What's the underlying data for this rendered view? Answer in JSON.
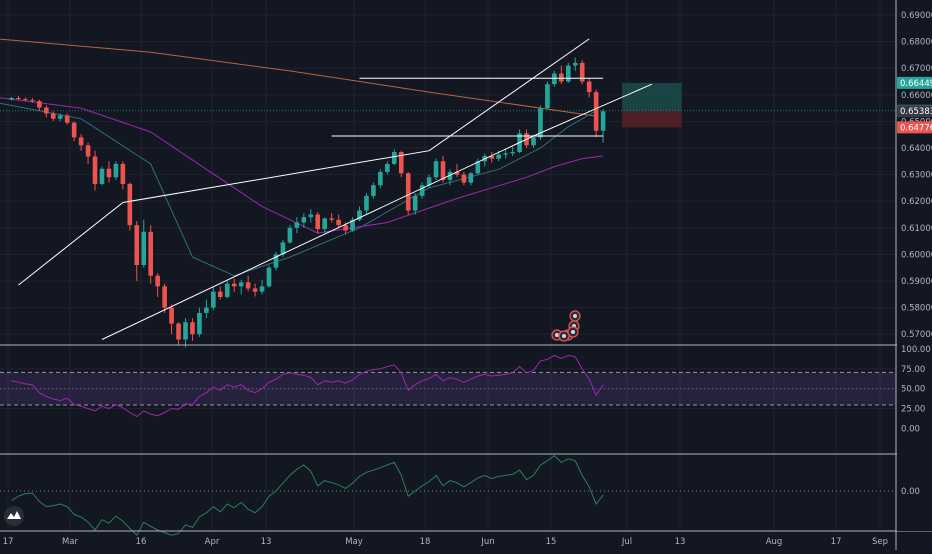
{
  "colors": {
    "background": "#131722",
    "grid": "#1f2330",
    "up": "#26a69a",
    "down": "#ef5350",
    "text": "#b2b5be",
    "channel": "#ffffff",
    "ma_orange": "#b5653f",
    "ma_purple": "#9c27b0",
    "ma_teal": "#26a69a",
    "rsi": "#9c27b0",
    "rsi_band": "#7e57c2",
    "osc": "#26a69a"
  },
  "price_axis": {
    "ticks": [
      "0.69000",
      "0.68000",
      "0.67000",
      "0.66000",
      "0.65000",
      "0.64000",
      "0.63000",
      "0.62000",
      "0.61000",
      "0.60000",
      "0.59000",
      "0.58000",
      "0.57000"
    ],
    "labels": [
      {
        "text": "0.66449",
        "value": 0.66449,
        "color": "#26a69a"
      },
      {
        "text": "0.65400",
        "value": 0.654,
        "color": "#26a69a"
      },
      {
        "text": "0.65383",
        "value": 0.65383,
        "color": "#363a45"
      },
      {
        "text": "0.64776",
        "value": 0.64776,
        "color": "#ef5350"
      }
    ]
  },
  "rsi_axis": {
    "ticks": [
      "100.00",
      "75.00",
      "50.00",
      "25.00",
      "0.00"
    ]
  },
  "osc_axis": {
    "ticks": [
      "0.00"
    ]
  },
  "time_axis": {
    "labels": [
      "17",
      "Mar",
      "16",
      "Apr",
      "13",
      "May",
      "18",
      "Jun",
      "15",
      "Jul",
      "13",
      "Aug",
      "17",
      "Sep"
    ]
  },
  "chart_data": {
    "type": "candlestick",
    "candles": [
      [
        0.6582,
        0.6592,
        0.6578,
        0.6588
      ],
      [
        0.6588,
        0.6596,
        0.658,
        0.6584
      ],
      [
        0.6584,
        0.659,
        0.6575,
        0.658
      ],
      [
        0.658,
        0.6588,
        0.657,
        0.6576
      ],
      [
        0.6576,
        0.6582,
        0.654,
        0.6552
      ],
      [
        0.6552,
        0.656,
        0.6515,
        0.653
      ],
      [
        0.653,
        0.6538,
        0.6502,
        0.651
      ],
      [
        0.651,
        0.653,
        0.65,
        0.6522
      ],
      [
        0.6522,
        0.653,
        0.6488,
        0.6495
      ],
      [
        0.6495,
        0.65,
        0.6425,
        0.644
      ],
      [
        0.644,
        0.6452,
        0.639,
        0.641
      ],
      [
        0.641,
        0.642,
        0.634,
        0.6368
      ],
      [
        0.6368,
        0.639,
        0.624,
        0.6265
      ],
      [
        0.6265,
        0.633,
        0.626,
        0.6322
      ],
      [
        0.6322,
        0.635,
        0.627,
        0.629
      ],
      [
        0.629,
        0.635,
        0.628,
        0.634
      ],
      [
        0.634,
        0.635,
        0.6245,
        0.6265
      ],
      [
        0.6265,
        0.627,
        0.609,
        0.611
      ],
      [
        0.611,
        0.6125,
        0.59,
        0.596
      ],
      [
        0.596,
        0.613,
        0.595,
        0.6085
      ],
      [
        0.6085,
        0.611,
        0.589,
        0.592
      ],
      [
        0.592,
        0.593,
        0.584,
        0.588
      ],
      [
        0.588,
        0.589,
        0.578,
        0.58
      ],
      [
        0.58,
        0.5812,
        0.57,
        0.574
      ],
      [
        0.574,
        0.5745,
        0.566,
        0.568
      ],
      [
        0.568,
        0.576,
        0.565,
        0.5745
      ],
      [
        0.5745,
        0.576,
        0.5675,
        0.57
      ],
      [
        0.57,
        0.58,
        0.569,
        0.578
      ],
      [
        0.578,
        0.583,
        0.576,
        0.58
      ],
      [
        0.58,
        0.588,
        0.579,
        0.586
      ],
      [
        0.586,
        0.588,
        0.583,
        0.584
      ],
      [
        0.584,
        0.59,
        0.5835,
        0.589
      ],
      [
        0.589,
        0.5908,
        0.586,
        0.588
      ],
      [
        0.588,
        0.5905,
        0.585,
        0.5895
      ],
      [
        0.5895,
        0.592,
        0.586,
        0.5872
      ],
      [
        0.5872,
        0.589,
        0.5842,
        0.586
      ],
      [
        0.586,
        0.5905,
        0.585,
        0.588
      ],
      [
        0.588,
        0.5958,
        0.5875,
        0.595
      ],
      [
        0.595,
        0.601,
        0.594,
        0.6
      ],
      [
        0.6,
        0.6055,
        0.599,
        0.6045
      ],
      [
        0.6045,
        0.611,
        0.604,
        0.61
      ],
      [
        0.61,
        0.614,
        0.608,
        0.612
      ],
      [
        0.612,
        0.6155,
        0.61,
        0.614
      ],
      [
        0.614,
        0.617,
        0.612,
        0.615
      ],
      [
        0.615,
        0.616,
        0.608,
        0.6095
      ],
      [
        0.6095,
        0.614,
        0.608,
        0.6135
      ],
      [
        0.6135,
        0.6155,
        0.612,
        0.613
      ],
      [
        0.613,
        0.615,
        0.61,
        0.611
      ],
      [
        0.611,
        0.612,
        0.6075,
        0.609
      ],
      [
        0.609,
        0.614,
        0.6085,
        0.613
      ],
      [
        0.613,
        0.618,
        0.6125,
        0.6165
      ],
      [
        0.6165,
        0.623,
        0.615,
        0.622
      ],
      [
        0.622,
        0.627,
        0.621,
        0.626
      ],
      [
        0.626,
        0.632,
        0.625,
        0.631
      ],
      [
        0.631,
        0.635,
        0.63,
        0.634
      ],
      [
        0.634,
        0.6395,
        0.6335,
        0.6385
      ],
      [
        0.6385,
        0.639,
        0.629,
        0.6305
      ],
      [
        0.6305,
        0.631,
        0.615,
        0.6165
      ],
      [
        0.6165,
        0.623,
        0.615,
        0.622
      ],
      [
        0.622,
        0.627,
        0.621,
        0.626
      ],
      [
        0.626,
        0.63,
        0.625,
        0.629
      ],
      [
        0.629,
        0.636,
        0.628,
        0.635
      ],
      [
        0.635,
        0.637,
        0.627,
        0.628
      ],
      [
        0.628,
        0.632,
        0.626,
        0.631
      ],
      [
        0.631,
        0.634,
        0.629,
        0.63
      ],
      [
        0.63,
        0.631,
        0.626,
        0.627
      ],
      [
        0.627,
        0.631,
        0.626,
        0.6305
      ],
      [
        0.6305,
        0.636,
        0.63,
        0.635
      ],
      [
        0.635,
        0.638,
        0.633,
        0.637
      ],
      [
        0.637,
        0.6385,
        0.6345,
        0.636
      ],
      [
        0.636,
        0.639,
        0.635,
        0.6375
      ],
      [
        0.6375,
        0.6395,
        0.636,
        0.638
      ],
      [
        0.638,
        0.6405,
        0.637,
        0.6385
      ],
      [
        0.6385,
        0.647,
        0.638,
        0.6455
      ],
      [
        0.6455,
        0.647,
        0.64,
        0.641
      ],
      [
        0.641,
        0.645,
        0.64,
        0.644
      ],
      [
        0.644,
        0.656,
        0.643,
        0.655
      ],
      [
        0.655,
        0.665,
        0.6545,
        0.664
      ],
      [
        0.664,
        0.669,
        0.663,
        0.668
      ],
      [
        0.668,
        0.671,
        0.664,
        0.665
      ],
      [
        0.665,
        0.672,
        0.6645,
        0.671
      ],
      [
        0.671,
        0.674,
        0.669,
        0.672
      ],
      [
        0.672,
        0.673,
        0.664,
        0.665
      ],
      [
        0.665,
        0.6665,
        0.659,
        0.661
      ],
      [
        0.661,
        0.662,
        0.644,
        0.6465
      ],
      [
        0.6465,
        0.6545,
        0.642,
        0.6538
      ]
    ],
    "channel": {
      "upper": [
        [
          1,
          0.5885
        ],
        [
          16,
          0.6195
        ],
        [
          60,
          0.639
        ],
        [
          83,
          0.681
        ]
      ],
      "lower": [
        [
          13,
          0.568
        ],
        [
          40,
          0.6015
        ],
        [
          75,
          0.6445
        ],
        [
          92,
          0.664
        ]
      ]
    },
    "horizontal_levels": [
      {
        "value": 0.6662,
        "from": 50,
        "to": 85
      },
      {
        "value": 0.6445,
        "from": 46,
        "to": 85
      }
    ],
    "position": {
      "from": 85,
      "to": 94,
      "entry": 0.654,
      "target": 0.66449,
      "stop": 0.64776
    },
    "ma_orange": [
      [
        -2,
        0.681
      ],
      [
        20,
        0.676
      ],
      [
        40,
        0.669
      ],
      [
        60,
        0.661
      ],
      [
        80,
        0.6535
      ],
      [
        84,
        0.652
      ]
    ],
    "ma_teal": [
      [
        -2,
        0.657
      ],
      [
        10,
        0.651
      ],
      [
        20,
        0.634
      ],
      [
        26,
        0.599
      ],
      [
        32,
        0.592
      ],
      [
        40,
        0.599
      ],
      [
        50,
        0.61
      ],
      [
        60,
        0.625
      ],
      [
        70,
        0.632
      ],
      [
        76,
        0.64
      ],
      [
        80,
        0.648
      ],
      [
        84,
        0.654
      ]
    ],
    "ma_purple": [
      [
        -2,
        0.659
      ],
      [
        10,
        0.655
      ],
      [
        20,
        0.646
      ],
      [
        28,
        0.632
      ],
      [
        36,
        0.618
      ],
      [
        44,
        0.608
      ],
      [
        54,
        0.612
      ],
      [
        64,
        0.621
      ],
      [
        74,
        0.629
      ],
      [
        78,
        0.633
      ],
      [
        82,
        0.636
      ],
      [
        85,
        0.637
      ]
    ],
    "rsi": [
      60,
      58,
      56,
      55,
      45,
      40,
      37,
      35,
      38,
      30,
      28,
      25,
      22,
      28,
      25,
      30,
      26,
      20,
      15,
      22,
      18,
      16,
      20,
      25,
      24,
      31,
      30,
      40,
      45,
      52,
      48,
      55,
      52,
      55,
      48,
      45,
      50,
      58,
      62,
      68,
      70,
      68,
      67,
      64,
      55,
      60,
      58,
      60,
      57,
      61,
      68,
      72,
      74,
      75,
      78,
      80,
      70,
      48,
      55,
      60,
      63,
      68,
      60,
      64,
      62,
      58,
      62,
      66,
      68,
      66,
      67,
      68,
      70,
      78,
      70,
      73,
      85,
      87,
      92,
      88,
      92,
      90,
      75,
      62,
      42,
      55
    ],
    "osc": [
      -0.0018,
      -0.001,
      -0.0005,
      -0.0004,
      -0.002,
      -0.003,
      -0.0028,
      -0.0025,
      -0.003,
      -0.0045,
      -0.005,
      -0.006,
      -0.0075,
      -0.0055,
      -0.0062,
      -0.0048,
      -0.0058,
      -0.0072,
      -0.0085,
      -0.006,
      -0.0068,
      -0.0075,
      -0.008,
      -0.0085,
      -0.0082,
      -0.0065,
      -0.007,
      -0.005,
      -0.0042,
      -0.003,
      -0.004,
      -0.0025,
      -0.0032,
      -0.0022,
      -0.0035,
      -0.0042,
      -0.003,
      -0.001,
      0.0,
      0.0015,
      0.003,
      0.0042,
      0.005,
      0.0038,
      0.001,
      0.002,
      0.0016,
      0.0012,
      0.0005,
      0.0015,
      0.0028,
      0.0036,
      0.004,
      0.0045,
      0.005,
      0.0055,
      0.003,
      -0.001,
      0.0,
      0.001,
      0.0018,
      0.003,
      0.001,
      0.002,
      0.0016,
      0.0008,
      0.0016,
      0.0025,
      0.003,
      0.0024,
      0.0028,
      0.003,
      0.0032,
      0.004,
      0.0022,
      0.003,
      0.005,
      0.0058,
      0.0068,
      0.0055,
      0.0062,
      0.0058,
      0.003,
      0.0008,
      -0.0025,
      -0.0008
    ]
  }
}
